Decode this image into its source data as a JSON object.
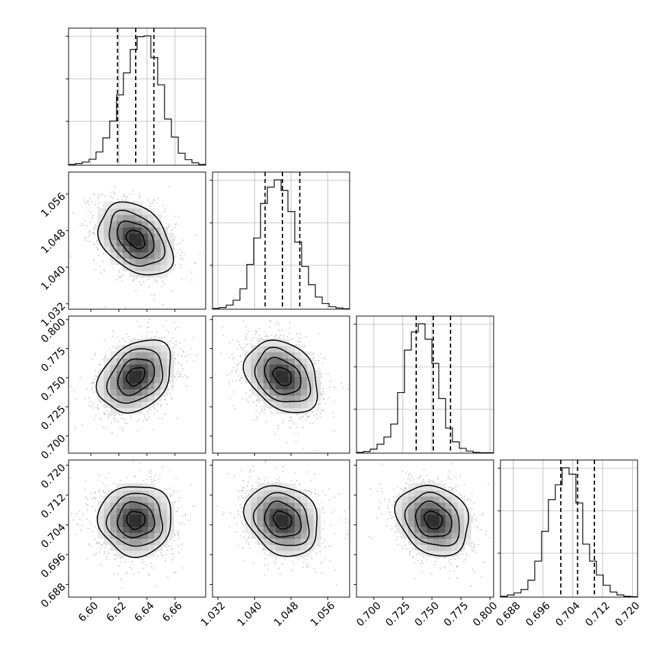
{
  "chart_data": {
    "type": "scatter",
    "title": "",
    "layout": "corner-plot",
    "grid": true,
    "parameters": [
      {
        "range": [
          6.584,
          6.682
        ],
        "ticks": [
          6.6,
          6.62,
          6.64,
          6.66
        ],
        "tick_labels": [
          "6.60",
          "6.62",
          "6.64",
          "6.66"
        ],
        "median": 6.632,
        "q16": 6.619,
        "q84": 6.645,
        "sigma": 0.0125,
        "hist_counts": [
          2,
          4,
          8,
          15,
          33,
          68,
          110,
          175,
          230,
          288,
          320,
          322,
          268,
          200,
          115,
          70,
          30,
          14,
          6,
          2
        ]
      },
      {
        "range": [
          1.0308,
          1.0608
        ],
        "ticks": [
          1.032,
          1.04,
          1.048,
          1.056
        ],
        "tick_labels": [
          "1.032",
          "1.040",
          "1.048",
          "1.056"
        ],
        "median": 1.0461,
        "q16": 1.0423,
        "q84": 1.0499,
        "sigma": 0.0038,
        "hist_counts": [
          2,
          4,
          10,
          22,
          50,
          110,
          175,
          260,
          300,
          318,
          292,
          240,
          165,
          105,
          60,
          30,
          14,
          6,
          3,
          1
        ]
      },
      {
        "range": [
          0.6852,
          0.803
        ],
        "ticks": [
          0.7,
          0.725,
          0.75,
          0.775,
          0.8
        ],
        "tick_labels": [
          "0.700",
          "0.725",
          "0.750",
          "0.775",
          "0.800"
        ],
        "median": 0.7512,
        "q16": 0.7365,
        "q84": 0.766,
        "sigma": 0.0148,
        "hist_counts": [
          2,
          4,
          10,
          22,
          40,
          72,
          150,
          255,
          300,
          320,
          282,
          222,
          135,
          62,
          28,
          12,
          5,
          2,
          1,
          1
        ]
      },
      {
        "range": [
          0.6846,
          0.7214
        ],
        "ticks": [
          0.688,
          0.696,
          0.704,
          0.712,
          0.72
        ],
        "tick_labels": [
          "0.688",
          "0.696",
          "0.704",
          "0.712",
          "0.720"
        ],
        "median": 0.7053,
        "q16": 0.7008,
        "q84": 0.7098,
        "sigma": 0.0045,
        "hist_counts": [
          2,
          5,
          10,
          18,
          40,
          85,
          155,
          230,
          265,
          305,
          290,
          222,
          125,
          85,
          52,
          28,
          12,
          5,
          2,
          1
        ]
      }
    ],
    "correlations": {
      "1-0": -0.35,
      "2-0": 0.3,
      "2-1": -0.3,
      "3-0": 0.0,
      "3-1": -0.2,
      "3-2": -0.2
    },
    "contour_levels_sigma": [
      0.5,
      1.0,
      1.5,
      2.0
    ]
  }
}
